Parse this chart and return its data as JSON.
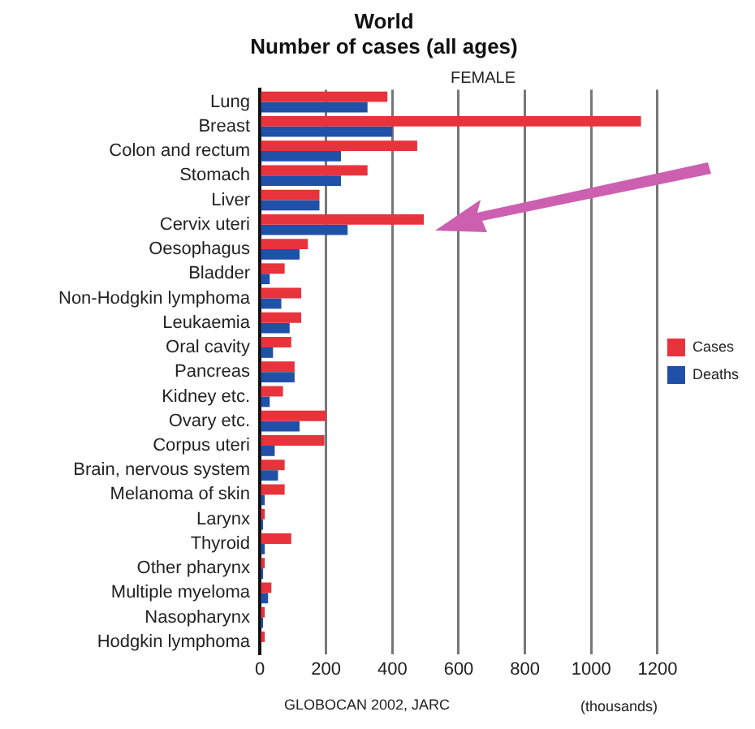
{
  "chart_data": {
    "type": "bar",
    "orientation": "horizontal",
    "title": "World",
    "subtitle": "Number of cases (all ages)",
    "xlabel": "(thousands)",
    "annotations": [
      "FEMALE",
      "GLOBOCAN 2002, JARC"
    ],
    "categories": [
      "Lung",
      "Breast",
      "Colon and rectum",
      "Stomach",
      "Liver",
      "Cervix uteri",
      "Oesophagus",
      "Bladder",
      "Non-Hodgkin lymphoma",
      "Leukaemia",
      "Oral cavity",
      "Pancreas",
      "Kidney etc.",
      "Ovary etc.",
      "Corpus uteri",
      "Brain, nervous system",
      "Melanoma of skin",
      "Larynx",
      "Thyroid",
      "Other pharynx",
      "Multiple myeloma",
      "Nasopharynx",
      "Hodgkin lymphoma"
    ],
    "series": [
      {
        "name": "Cases",
        "color": "#e8323c",
        "values": [
          385,
          1150,
          475,
          325,
          180,
          495,
          145,
          75,
          125,
          125,
          95,
          105,
          70,
          200,
          195,
          75,
          75,
          15,
          95,
          15,
          35,
          15,
          15
        ]
      },
      {
        "name": "Deaths",
        "color": "#2050a8",
        "values": [
          325,
          400,
          245,
          245,
          180,
          265,
          120,
          30,
          65,
          90,
          40,
          105,
          30,
          120,
          45,
          55,
          15,
          10,
          15,
          10,
          25,
          10,
          null
        ]
      }
    ],
    "xlim": [
      0,
      1200
    ],
    "xticks": [
      0,
      200,
      400,
      600,
      800,
      1000,
      1200
    ],
    "grid": "x",
    "legend": "right"
  }
}
